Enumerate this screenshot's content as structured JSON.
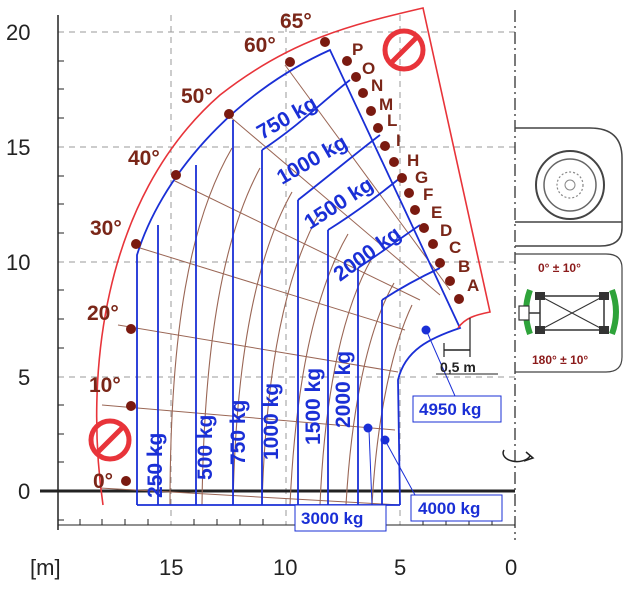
{
  "axis": {
    "unit_label": "[m]",
    "x_ticks": [
      "15",
      "10",
      "5",
      "0"
    ],
    "y_ticks": [
      "20",
      "15",
      "10",
      "5",
      "0"
    ]
  },
  "angles": [
    "0°",
    "10°",
    "20°",
    "30°",
    "40°",
    "50°",
    "60°",
    "65°"
  ],
  "sectors": [
    "A",
    "B",
    "C",
    "D",
    "E",
    "F",
    "G",
    "H",
    "I",
    "L",
    "M",
    "N",
    "O",
    "P"
  ],
  "arc_capacities": [
    "750 kg",
    "1000 kg",
    "1500 kg",
    "2000 kg"
  ],
  "column_capacities": [
    "250 kg",
    "500 kg",
    "750 kg",
    "1000 kg",
    "1500 kg",
    "2000 kg"
  ],
  "boxed_capacities": [
    "4950 kg",
    "4000 kg",
    "3000 kg"
  ],
  "scale_bar": "0,5 m",
  "rotation": {
    "front": "0° ± 10°",
    "rear": "180° ± 10°"
  },
  "icons": [
    "no-entry-icon",
    "no-entry-icon",
    "wheel-icon",
    "top-view-vehicle-icon",
    "rotation-arrow-icon"
  ],
  "colors": {
    "envelope": "#e8343a",
    "capacity": "#1a2fd6",
    "arcs": "#9a6655",
    "markers": "#7a1a10",
    "grid": "#9a9a9a"
  }
}
